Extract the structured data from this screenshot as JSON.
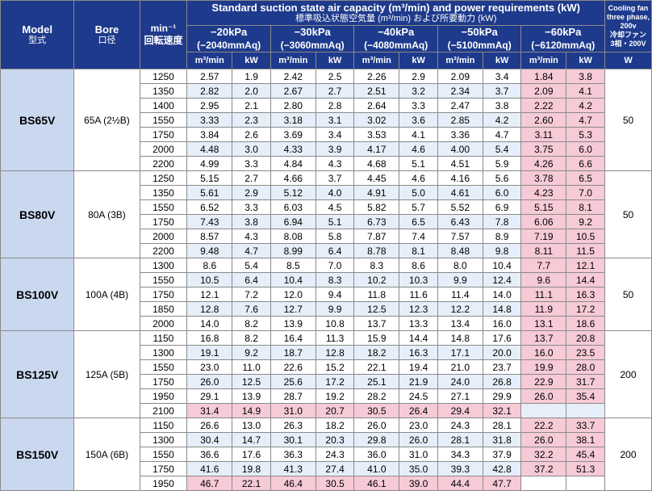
{
  "header": {
    "model_en": "Model",
    "model_jp": "型式",
    "bore_en": "Bore",
    "bore_jp": "口径",
    "rpm_top": "min⁻¹",
    "rpm_jp": "回転速度",
    "title_en": "Standard suction state air capacity (m³/min) and power requirements (kW)",
    "title_jp": "標準吸込状態空気量 (m³/min) および所要動力 (kW)",
    "fan_lines": [
      "Cooling fan",
      "three phase,",
      "200v",
      "冷却ファン",
      "3相・200V"
    ],
    "fan_unit": "W",
    "cap_unit": "m³/min",
    "kw_unit": "kW",
    "pressures": [
      {
        "kpa": "−20kPa",
        "mmaq": "(−2040mmAq)"
      },
      {
        "kpa": "−30kPa",
        "mmaq": "(−3060mmAq)"
      },
      {
        "kpa": "−40kPa",
        "mmaq": "(−4080mmAq)"
      },
      {
        "kpa": "−50kPa",
        "mmaq": "(−5100mmAq)"
      },
      {
        "kpa": "−60kPa",
        "mmaq": "(−6120mmAq)"
      }
    ]
  },
  "models": [
    {
      "model": "BS65V",
      "bore": "65A (2½B)",
      "fan": "50",
      "rows": [
        {
          "rpm": "1250",
          "vals": [
            "2.57",
            "1.9",
            "2.42",
            "2.5",
            "2.26",
            "2.9",
            "2.09",
            "3.4",
            "1.84",
            "3.8"
          ]
        },
        {
          "rpm": "1350",
          "vals": [
            "2.82",
            "2.0",
            "2.67",
            "2.7",
            "2.51",
            "3.2",
            "2.34",
            "3.7",
            "2.09",
            "4.1"
          ]
        },
        {
          "rpm": "1400",
          "vals": [
            "2.95",
            "2.1",
            "2.80",
            "2.8",
            "2.64",
            "3.3",
            "2.47",
            "3.8",
            "2.22",
            "4.2"
          ]
        },
        {
          "rpm": "1550",
          "vals": [
            "3.33",
            "2.3",
            "3.18",
            "3.1",
            "3.02",
            "3.6",
            "2.85",
            "4.2",
            "2.60",
            "4.7"
          ]
        },
        {
          "rpm": "1750",
          "vals": [
            "3.84",
            "2.6",
            "3.69",
            "3.4",
            "3.53",
            "4.1",
            "3.36",
            "4.7",
            "3.11",
            "5.3"
          ]
        },
        {
          "rpm": "2000",
          "vals": [
            "4.48",
            "3.0",
            "4.33",
            "3.9",
            "4.17",
            "4.6",
            "4.00",
            "5.4",
            "3.75",
            "6.0"
          ]
        },
        {
          "rpm": "2200",
          "vals": [
            "4.99",
            "3.3",
            "4.84",
            "4.3",
            "4.68",
            "5.1",
            "4.51",
            "5.9",
            "4.26",
            "6.6"
          ]
        }
      ]
    },
    {
      "model": "BS80V",
      "bore": "80A (3B)",
      "fan": "50",
      "rows": [
        {
          "rpm": "1250",
          "vals": [
            "5.15",
            "2.7",
            "4.66",
            "3.7",
            "4.45",
            "4.6",
            "4.16",
            "5.6",
            "3.78",
            "6.5"
          ]
        },
        {
          "rpm": "1350",
          "vals": [
            "5.61",
            "2.9",
            "5.12",
            "4.0",
            "4.91",
            "5.0",
            "4.61",
            "6.0",
            "4.23",
            "7.0"
          ]
        },
        {
          "rpm": "1550",
          "vals": [
            "6.52",
            "3.3",
            "6.03",
            "4.5",
            "5.82",
            "5.7",
            "5.52",
            "6.9",
            "5.15",
            "8.1"
          ]
        },
        {
          "rpm": "1750",
          "vals": [
            "7.43",
            "3.8",
            "6.94",
            "5.1",
            "6.73",
            "6.5",
            "6.43",
            "7.8",
            "6.06",
            "9.2"
          ]
        },
        {
          "rpm": "2000",
          "vals": [
            "8.57",
            "4.3",
            "8.08",
            "5.8",
            "7.87",
            "7.4",
            "7.57",
            "8.9",
            "7.19",
            "10.5"
          ]
        },
        {
          "rpm": "2200",
          "vals": [
            "9.48",
            "4.7",
            "8.99",
            "6.4",
            "8.78",
            "8.1",
            "8.48",
            "9.8",
            "8.11",
            "11.5"
          ]
        }
      ]
    },
    {
      "model": "BS100V",
      "bore": "100A (4B)",
      "fan": "50",
      "rows": [
        {
          "rpm": "1300",
          "vals": [
            "8.6",
            "5.4",
            "8.5",
            "7.0",
            "8.3",
            "8.6",
            "8.0",
            "10.4",
            "7.7",
            "12.1"
          ]
        },
        {
          "rpm": "1550",
          "vals": [
            "10.5",
            "6.4",
            "10.4",
            "8.3",
            "10.2",
            "10.3",
            "9.9",
            "12.4",
            "9.6",
            "14.4"
          ]
        },
        {
          "rpm": "1750",
          "vals": [
            "12.1",
            "7.2",
            "12.0",
            "9.4",
            "11.8",
            "11.6",
            "11.4",
            "14.0",
            "11.1",
            "16.3"
          ]
        },
        {
          "rpm": "1850",
          "vals": [
            "12.8",
            "7.6",
            "12.7",
            "9.9",
            "12.5",
            "12.3",
            "12.2",
            "14.8",
            "11.9",
            "17.2"
          ]
        },
        {
          "rpm": "2000",
          "vals": [
            "14.0",
            "8.2",
            "13.9",
            "10.8",
            "13.7",
            "13.3",
            "13.4",
            "16.0",
            "13.1",
            "18.6"
          ]
        }
      ]
    },
    {
      "model": "BS125V",
      "bore": "125A (5B)",
      "fan": "200",
      "rows": [
        {
          "rpm": "1150",
          "vals": [
            "16.8",
            "8.2",
            "16.4",
            "11.3",
            "15.9",
            "14.4",
            "14.8",
            "17.6",
            "13.7",
            "20.8"
          ]
        },
        {
          "rpm": "1300",
          "vals": [
            "19.1",
            "9.2",
            "18.7",
            "12.8",
            "18.2",
            "16.3",
            "17.1",
            "20.0",
            "16.0",
            "23.5"
          ]
        },
        {
          "rpm": "1550",
          "vals": [
            "23.0",
            "11.0",
            "22.6",
            "15.2",
            "22.1",
            "19.4",
            "21.0",
            "23.7",
            "19.9",
            "28.0"
          ]
        },
        {
          "rpm": "1750",
          "vals": [
            "26.0",
            "12.5",
            "25.6",
            "17.2",
            "25.1",
            "21.9",
            "24.0",
            "26.8",
            "22.9",
            "31.7"
          ]
        },
        {
          "rpm": "1950",
          "vals": [
            "29.1",
            "13.9",
            "28.7",
            "19.2",
            "28.2",
            "24.5",
            "27.1",
            "29.9",
            "26.0",
            "35.4"
          ]
        },
        {
          "rpm": "2100",
          "vals": [
            "31.4",
            "14.9",
            "31.0",
            "20.7",
            "30.5",
            "26.4",
            "29.4",
            "32.1",
            "",
            ""
          ]
        }
      ]
    },
    {
      "model": "BS150V",
      "bore": "150A (6B)",
      "fan": "200",
      "rows": [
        {
          "rpm": "1150",
          "vals": [
            "26.6",
            "13.0",
            "26.3",
            "18.2",
            "26.0",
            "23.0",
            "24.3",
            "28.1",
            "22.2",
            "33.7"
          ]
        },
        {
          "rpm": "1300",
          "vals": [
            "30.4",
            "14.7",
            "30.1",
            "20.3",
            "29.8",
            "26.0",
            "28.1",
            "31.8",
            "26.0",
            "38.1"
          ]
        },
        {
          "rpm": "1550",
          "vals": [
            "36.6",
            "17.6",
            "36.3",
            "24.3",
            "36.0",
            "31.0",
            "34.3",
            "37.9",
            "32.2",
            "45.4"
          ]
        },
        {
          "rpm": "1750",
          "vals": [
            "41.6",
            "19.8",
            "41.3",
            "27.4",
            "41.0",
            "35.0",
            "39.3",
            "42.8",
            "37.2",
            "51.3"
          ]
        },
        {
          "rpm": "1950",
          "vals": [
            "46.7",
            "22.1",
            "46.4",
            "30.5",
            "46.1",
            "39.0",
            "44.4",
            "47.7",
            "",
            ""
          ]
        }
      ]
    }
  ],
  "colors": {
    "header_bg": "#1e3a8c",
    "model_bg": "#c9d8ef",
    "row_alt_bg": "#e6eef9",
    "highlight_bg": "#f6cad6"
  }
}
